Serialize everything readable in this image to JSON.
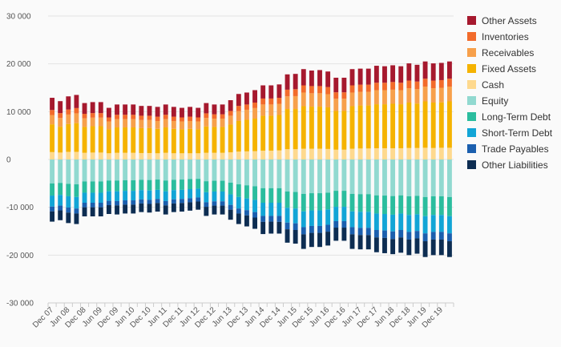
{
  "chart_data": {
    "type": "bar",
    "stacked": true,
    "title": "",
    "xlabel": "",
    "ylabel": "",
    "ylim": [
      -30000,
      30000
    ],
    "y_ticks": [
      30000,
      20000,
      10000,
      0,
      -10000,
      -20000,
      -30000
    ],
    "y_tick_labels": [
      "30 000",
      "20 000",
      "10 000",
      "0",
      "-10 000",
      "-20 000",
      "-30 000"
    ],
    "x_tick_labels": [
      "Dec 07",
      "Jun 08",
      "Dec 08",
      "Jun 09",
      "Dec 09",
      "Jun 10",
      "Dec 10",
      "Jun 11",
      "Dec 11",
      "Jun 12",
      "Dec 12",
      "Jun 13",
      "Dec 13",
      "Jun 14",
      "Dec 14",
      "Jun 15",
      "Dec 15",
      "Jun 16",
      "Dec 16",
      "Jun 17",
      "Dec 17",
      "Jun 18",
      "Dec 18",
      "Jun 19",
      "Dec 19"
    ],
    "grid": true,
    "legend_position": "right",
    "assets": {
      "total": [
        12900,
        12200,
        13200,
        13500,
        11800,
        12000,
        12000,
        10800,
        11500,
        11500,
        11500,
        11200,
        11200,
        11000,
        11500,
        11000,
        10800,
        11000,
        10800,
        11800,
        11500,
        11500,
        12400,
        13700,
        14000,
        14500,
        15500,
        15500,
        15700,
        17800,
        17900,
        18900,
        18600,
        18700,
        18400,
        17100,
        17100,
        18900,
        19000,
        19000,
        19600,
        19500,
        19700,
        19500,
        20100,
        19800,
        20500,
        20100,
        20200,
        20500
      ],
      "Fixed Assets": [
        5800,
        5400,
        5800,
        6000,
        5400,
        5500,
        5500,
        5000,
        5300,
        5300,
        5300,
        5200,
        5200,
        5100,
        5300,
        5100,
        5000,
        5100,
        5000,
        5500,
        5400,
        5400,
        5800,
        6400,
        6600,
        6800,
        7300,
        7300,
        7400,
        8400,
        8400,
        8900,
        8800,
        8800,
        8700,
        8100,
        8100,
        8900,
        9000,
        9000,
        9200,
        9200,
        9300,
        9200,
        9500,
        9300,
        9700,
        9500,
        9500,
        9700
      ],
      "Cash": [
        1550,
        1450,
        1600,
        1600,
        1400,
        1450,
        1450,
        1300,
        1400,
        1400,
        1400,
        1350,
        1350,
        1300,
        1400,
        1300,
        1300,
        1300,
        1300,
        1400,
        1400,
        1400,
        1500,
        1650,
        1700,
        1750,
        1850,
        1850,
        1900,
        2150,
        2150,
        2250,
        2250,
        2250,
        2200,
        2050,
        2050,
        2250,
        2300,
        2300,
        2350,
        2350,
        2350,
        2350,
        2400,
        2400,
        2450,
        2400,
        2450,
        2450
      ],
      "Receivables": [
        1950,
        1850,
        2000,
        2050,
        1800,
        1800,
        1800,
        1650,
        1750,
        1750,
        1750,
        1700,
        1700,
        1650,
        1750,
        1650,
        1650,
        1650,
        1650,
        1800,
        1750,
        1750,
        1850,
        2050,
        2100,
        2200,
        2350,
        2350,
        2350,
        2650,
        2700,
        2850,
        2800,
        2800,
        2750,
        2550,
        2550,
        2850,
        2850,
        2850,
        2950,
        2950,
        2950,
        2950,
        3000,
        3000,
        3100,
        3000,
        3050,
        3100
      ],
      "Inventories": [
        1050,
        1000,
        1050,
        1100,
        950,
        950,
        950,
        850,
        900,
        900,
        900,
        900,
        900,
        900,
        900,
        900,
        850,
        900,
        850,
        950,
        900,
        900,
        1000,
        1100,
        1100,
        1150,
        1250,
        1250,
        1250,
        1400,
        1450,
        1500,
        1500,
        1500,
        1500,
        1350,
        1350,
        1500,
        1500,
        1500,
        1550,
        1550,
        1600,
        1550,
        1600,
        1600,
        1650,
        1600,
        1600,
        1650
      ],
      "Other Assets": [
        2550,
        2500,
        2750,
        2750,
        2250,
        2300,
        2300,
        2000,
        2150,
        2150,
        2150,
        2050,
        2050,
        2050,
        2150,
        2050,
        2000,
        2050,
        2000,
        2150,
        2050,
        2050,
        2250,
        2500,
        2500,
        2600,
        2750,
        2750,
        2800,
        3200,
        3200,
        3400,
        3250,
        3350,
        3250,
        3050,
        3050,
        3400,
        3350,
        3350,
        3550,
        3450,
        3500,
        3450,
        3600,
        3500,
        3600,
        3600,
        3600,
        3600
      ]
    },
    "liabilities": {
      "total": [
        13000,
        12700,
        13300,
        13500,
        11900,
        11900,
        11900,
        11400,
        11500,
        11300,
        11300,
        11000,
        11100,
        10900,
        11500,
        11000,
        10900,
        10700,
        10500,
        11800,
        11500,
        11500,
        12600,
        13500,
        14000,
        14500,
        15600,
        15500,
        15500,
        17400,
        17600,
        18700,
        18300,
        18300,
        18000,
        17000,
        17000,
        18700,
        18800,
        18800,
        19400,
        19600,
        19800,
        19500,
        20000,
        19700,
        20400,
        20000,
        20000,
        20400
      ],
      "Equity": [
        5000,
        4900,
        5100,
        5200,
        4600,
        4600,
        4600,
        4400,
        4400,
        4350,
        4350,
        4250,
        4300,
        4200,
        4400,
        4250,
        4200,
        4100,
        4050,
        4550,
        4450,
        4450,
        4850,
        5200,
        5400,
        5600,
        6000,
        6000,
        6000,
        6700,
        6800,
        7200,
        7050,
        7050,
        6950,
        6550,
        6550,
        7200,
        7250,
        7250,
        7500,
        7550,
        7650,
        7500,
        7700,
        7600,
        7850,
        7700,
        7700,
        7850
      ],
      "Long-Term Debt": [
        2550,
        2500,
        2600,
        2650,
        2350,
        2350,
        2350,
        2250,
        2250,
        2200,
        2200,
        2150,
        2200,
        2150,
        2250,
        2150,
        2150,
        2100,
        2050,
        2300,
        2250,
        2250,
        2450,
        2650,
        2750,
        2850,
        3050,
        3050,
        3050,
        3400,
        3450,
        3650,
        3600,
        3600,
        3500,
        3350,
        3350,
        3650,
        3700,
        3700,
        3800,
        3850,
        3900,
        3800,
        3900,
        3850,
        4000,
        3900,
        3900,
        4000
      ],
      "Short-Term Debt": [
        2300,
        2250,
        2350,
        2400,
        2100,
        2100,
        2100,
        2000,
        2050,
        2000,
        2000,
        1950,
        1950,
        1900,
        2050,
        1950,
        1900,
        1900,
        1850,
        2100,
        2050,
        2050,
        2200,
        2400,
        2450,
        2550,
        2750,
        2750,
        2750,
        3100,
        3100,
        3300,
        3250,
        3250,
        3200,
        3000,
        3000,
        3300,
        3350,
        3350,
        3450,
        3450,
        3500,
        3450,
        3550,
        3500,
        3600,
        3550,
        3550,
        3600
      ],
      "Trade Payables": [
        1000,
        1000,
        1050,
        1050,
        950,
        950,
        950,
        900,
        900,
        900,
        900,
        850,
        850,
        850,
        900,
        850,
        850,
        850,
        850,
        950,
        900,
        900,
        1000,
        1050,
        1100,
        1150,
        1250,
        1200,
        1250,
        1400,
        1400,
        1500,
        1450,
        1450,
        1450,
        1350,
        1350,
        1500,
        1500,
        1500,
        1550,
        1550,
        1600,
        1550,
        1600,
        1550,
        1650,
        1600,
        1600,
        1650
      ],
      "Other Liabilities": [
        2150,
        2050,
        2200,
        2200,
        1900,
        1900,
        1900,
        1850,
        1900,
        1850,
        1850,
        1800,
        1800,
        1800,
        1900,
        1800,
        1800,
        1750,
        1700,
        1900,
        1850,
        1850,
        2100,
        2200,
        2300,
        2350,
        2550,
        2500,
        2450,
        2800,
        2850,
        3050,
        2950,
        2950,
        2900,
        2750,
        2750,
        3050,
        3000,
        3000,
        3100,
        3200,
        3150,
        3200,
        3250,
        3200,
        3300,
        3250,
        3250,
        3300
      ]
    },
    "series": [
      {
        "name": "Other Assets",
        "side": "assets",
        "color": "#a6192e"
      },
      {
        "name": "Inventories",
        "side": "assets",
        "color": "#f26b2b"
      },
      {
        "name": "Receivables",
        "side": "assets",
        "color": "#f7a04b"
      },
      {
        "name": "Fixed Assets",
        "side": "assets",
        "color": "#f5b300"
      },
      {
        "name": "Cash",
        "side": "assets",
        "color": "#fed98e"
      },
      {
        "name": "Equity",
        "side": "liabilities",
        "color": "#91d9d0"
      },
      {
        "name": "Long-Term Debt",
        "side": "liabilities",
        "color": "#2bbd9e"
      },
      {
        "name": "Short-Term Debt",
        "side": "liabilities",
        "color": "#12a5d6"
      },
      {
        "name": "Trade Payables",
        "side": "liabilities",
        "color": "#1b5fae"
      },
      {
        "name": "Other Liabilities",
        "side": "liabilities",
        "color": "#0d2d52"
      }
    ],
    "stack_order_up": [
      "Cash",
      "Fixed Assets",
      "Receivables",
      "Inventories",
      "Other Assets"
    ],
    "stack_order_down": [
      "Equity",
      "Long-Term Debt",
      "Short-Term Debt",
      "Trade Payables",
      "Other Liabilities"
    ],
    "colors": {
      "grid": "#e3e3e3",
      "axis": "#cccccc",
      "tick_text": "#555555",
      "background": "#fafafa"
    }
  }
}
